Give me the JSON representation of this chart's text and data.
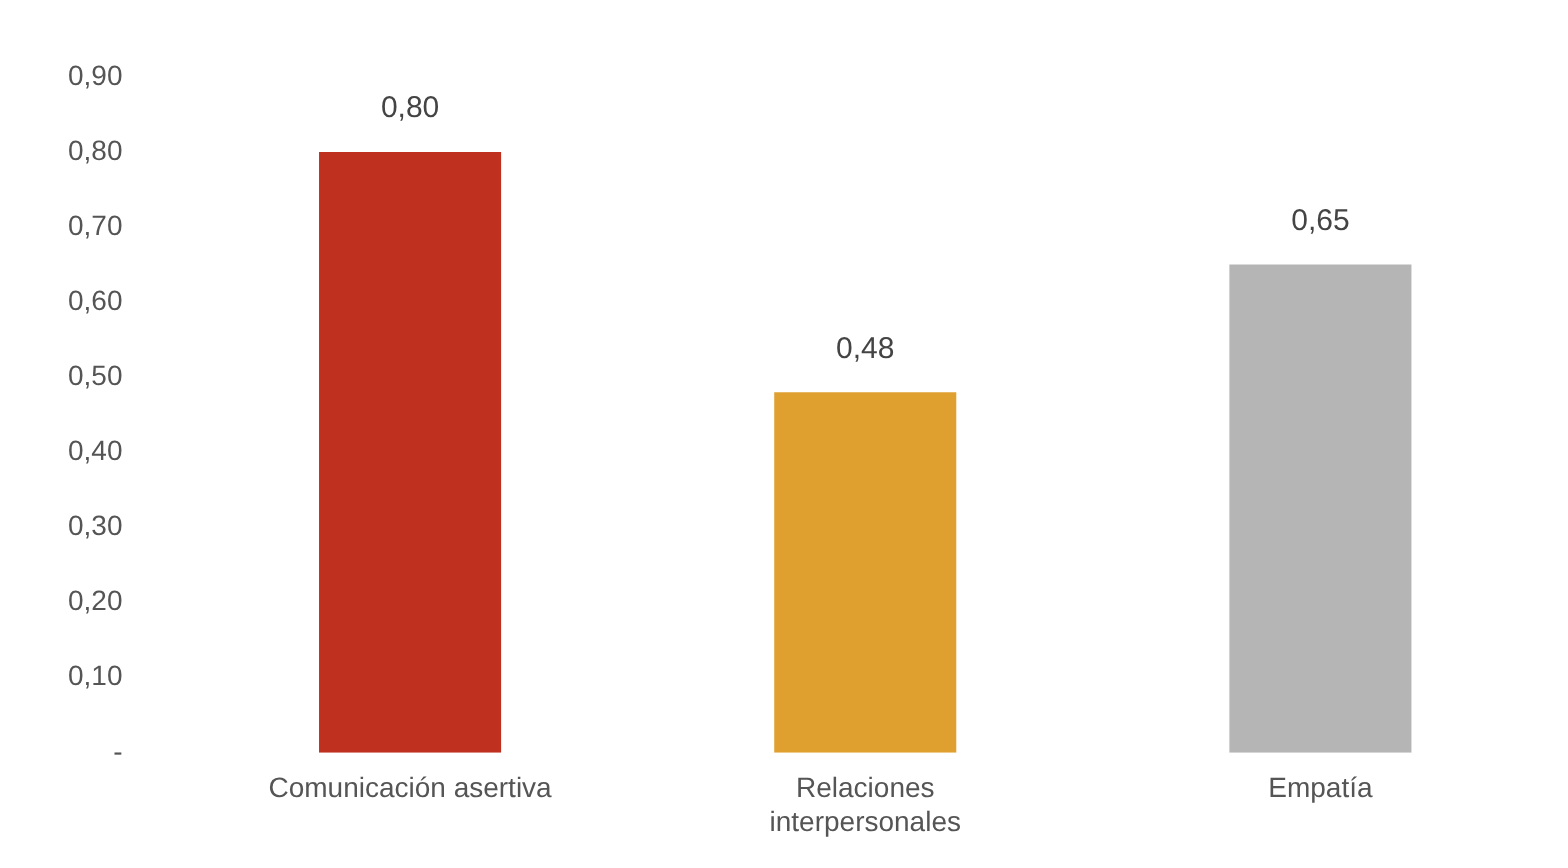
{
  "chart_data": {
    "type": "bar",
    "categories": [
      "Comunicación asertiva",
      "Relaciones interpersonales",
      "Empatía"
    ],
    "values": [
      0.8,
      0.48,
      0.65
    ],
    "colors": [
      "#c0301f",
      "#e0a030",
      "#b5b5b5"
    ],
    "value_labels": [
      "0,80",
      "0,48",
      "0,65"
    ],
    "ylim": [
      0,
      0.9
    ],
    "yticks": [
      {
        "value": 0,
        "label": "-"
      },
      {
        "value": 0.1,
        "label": "0,10"
      },
      {
        "value": 0.2,
        "label": "0,20"
      },
      {
        "value": 0.3,
        "label": "0,30"
      },
      {
        "value": 0.4,
        "label": "0,40"
      },
      {
        "value": 0.5,
        "label": "0,50"
      },
      {
        "value": 0.6,
        "label": "0,60"
      },
      {
        "value": 0.7,
        "label": "0,70"
      },
      {
        "value": 0.8,
        "label": "0,80"
      },
      {
        "value": 0.9,
        "label": "0,90"
      }
    ],
    "grid": false,
    "legend": false
  }
}
